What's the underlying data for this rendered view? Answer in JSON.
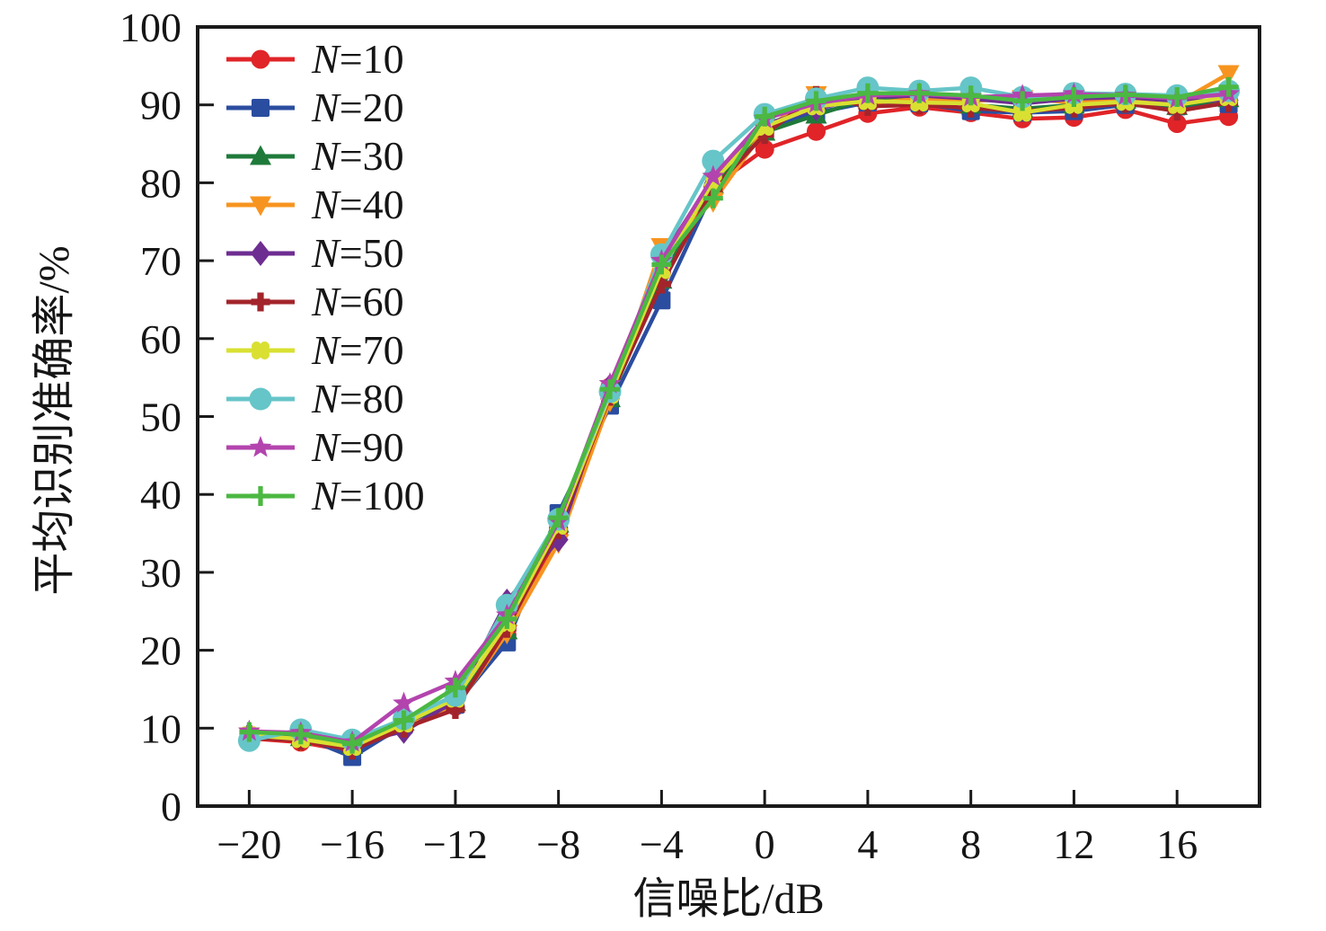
{
  "chart_data": {
    "type": "line",
    "title": "",
    "xlabel": "信噪比/dB",
    "ylabel": "平均识别准确率/%",
    "xlim": [
      -22,
      19.2
    ],
    "ylim": [
      0,
      100
    ],
    "grid": "off",
    "legend_position": "top-left",
    "x_ticks": {
      "values": [
        -20,
        -16,
        -12,
        -8,
        -4,
        0,
        4,
        8,
        12,
        16
      ],
      "labels": [
        "−20",
        "−16",
        "−12",
        "−8",
        "−4",
        "0",
        "4",
        "8",
        "12",
        "16"
      ]
    },
    "y_ticks": {
      "values": [
        0,
        10,
        20,
        30,
        40,
        50,
        60,
        70,
        80,
        90,
        100
      ],
      "labels": [
        "0",
        "10",
        "20",
        "30",
        "40",
        "50",
        "60",
        "70",
        "80",
        "90",
        "100"
      ]
    },
    "x": [
      -20,
      -18,
      -16,
      -14,
      -12,
      -10,
      -8,
      -6,
      -4,
      -2,
      0,
      2,
      4,
      6,
      8,
      10,
      12,
      14,
      16,
      18
    ],
    "series": [
      {
        "name": "N=10",
        "color": "#e02428",
        "marker": "circle",
        "values": [
          8.7,
          8.2,
          7.0,
          10.0,
          12.8,
          22.0,
          35.0,
          53.8,
          68.5,
          79.5,
          84.3,
          86.6,
          88.9,
          89.7,
          89.0,
          88.2,
          88.4,
          89.4,
          87.6,
          88.5
        ]
      },
      {
        "name": "N=20",
        "color": "#2b4da0",
        "marker": "square",
        "values": [
          8.6,
          9.0,
          6.3,
          10.4,
          13.0,
          21.0,
          37.6,
          51.4,
          64.9,
          79.0,
          87.0,
          89.0,
          90.3,
          90.2,
          89.2,
          89.0,
          89.2,
          90.0,
          89.8,
          90.1
        ]
      },
      {
        "name": "N=30",
        "color": "#1f7a3a",
        "marker": "triangle-up",
        "values": [
          9.4,
          8.8,
          7.8,
          10.8,
          13.3,
          22.5,
          36.2,
          52.3,
          67.5,
          79.8,
          86.5,
          88.7,
          90.8,
          91.0,
          90.0,
          89.5,
          90.0,
          90.6,
          89.8,
          90.8
        ]
      },
      {
        "name": "N=40",
        "color": "#f79420",
        "marker": "triangle-down",
        "values": [
          9.0,
          8.5,
          7.4,
          10.2,
          12.6,
          22.2,
          33.8,
          52.0,
          71.8,
          77.6,
          86.8,
          91.3,
          90.2,
          90.8,
          90.5,
          90.8,
          90.3,
          90.8,
          90.2,
          94.0
        ]
      },
      {
        "name": "N=50",
        "color": "#6e2d91",
        "marker": "diamond",
        "values": [
          9.2,
          9.3,
          8.0,
          9.6,
          13.5,
          26.3,
          34.2,
          53.9,
          70.3,
          80.6,
          87.5,
          89.5,
          91.0,
          91.2,
          90.8,
          90.2,
          90.8,
          91.0,
          90.5,
          90.6
        ]
      },
      {
        "name": "N=60",
        "color": "#a3242b",
        "marker": "cross",
        "values": [
          8.8,
          8.4,
          7.2,
          10.0,
          12.4,
          22.8,
          35.5,
          52.6,
          67.0,
          79.2,
          86.2,
          91.2,
          89.8,
          90.0,
          89.6,
          89.2,
          89.6,
          90.2,
          89.2,
          90.3
        ]
      },
      {
        "name": "N=70",
        "color": "#d9e032",
        "marker": "clover",
        "values": [
          9.1,
          8.6,
          7.6,
          10.6,
          13.8,
          23.5,
          36.0,
          52.8,
          68.8,
          80.2,
          87.2,
          89.8,
          90.5,
          90.3,
          90.2,
          89.0,
          90.0,
          90.4,
          90.0,
          91.0
        ]
      },
      {
        "name": "N=80",
        "color": "#66c5c8",
        "marker": "circle-lg",
        "values": [
          8.4,
          9.8,
          8.5,
          11.2,
          14.2,
          25.8,
          36.8,
          53.2,
          70.8,
          82.8,
          88.8,
          90.8,
          92.2,
          91.8,
          92.2,
          91.0,
          91.5,
          91.4,
          91.2,
          91.8
        ]
      },
      {
        "name": "N=90",
        "color": "#b344ae",
        "marker": "star",
        "values": [
          9.6,
          9.4,
          8.2,
          13.2,
          16.0,
          24.5,
          36.5,
          54.2,
          70.0,
          80.8,
          88.2,
          90.2,
          91.2,
          91.4,
          91.0,
          91.2,
          91.4,
          91.2,
          90.8,
          91.4
        ]
      },
      {
        "name": "N=100",
        "color": "#4bb842",
        "marker": "plus",
        "values": [
          9.5,
          9.2,
          8.0,
          11.0,
          15.2,
          24.0,
          37.0,
          53.5,
          69.5,
          78.0,
          88.5,
          90.5,
          91.5,
          91.5,
          91.2,
          90.5,
          91.0,
          91.3,
          91.0,
          92.3
        ]
      }
    ],
    "frame_color": "#1a1a1a"
  }
}
